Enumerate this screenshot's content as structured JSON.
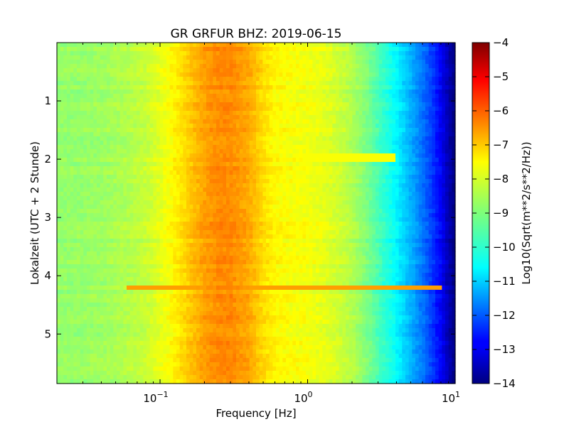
{
  "chart_data": {
    "type": "heatmap",
    "title": "GR GRFUR BHZ: 2019-06-15",
    "xlabel": "Frequency [Hz]",
    "ylabel": "Lokalzeit (UTC + 2 Stunde)",
    "x_scale": "log",
    "xlim": [
      0.02,
      10
    ],
    "x_ticks": [
      {
        "value": 0.1,
        "base": "10",
        "exp": "−1"
      },
      {
        "value": 1,
        "base": "10",
        "exp": "0"
      },
      {
        "value": 10,
        "base": "10",
        "exp": "1"
      }
    ],
    "ylim": [
      0,
      5.85
    ],
    "y_inverted": true,
    "y_ticks": [
      1,
      2,
      3,
      4,
      5
    ],
    "y_tick_labels": [
      "1",
      "2",
      "3",
      "4",
      "5"
    ],
    "colorbar": {
      "label": "Log10(Sqrt(m**2/s**2/Hz))",
      "range": [
        -14,
        -4
      ],
      "ticks": [
        -4,
        -5,
        -6,
        -7,
        -8,
        -9,
        -10,
        -11,
        -12,
        -13,
        -14
      ],
      "tick_labels": [
        "−4",
        "−5",
        "−6",
        "−7",
        "−8",
        "−9",
        "−10",
        "−11",
        "−12",
        "−13",
        "−14"
      ],
      "colormap": "jet"
    },
    "spectrum_profile": {
      "frequency_hz": [
        0.02,
        0.03,
        0.04,
        0.06,
        0.08,
        0.1,
        0.13,
        0.16,
        0.2,
        0.25,
        0.3,
        0.4,
        0.5,
        0.6,
        0.8,
        1.0,
        1.3,
        1.6,
        2.0,
        2.5,
        3.0,
        4.0,
        5.0,
        6.0,
        7.0,
        8.0,
        9.0,
        10.0
      ],
      "level": [
        -8.8,
        -8.75,
        -8.7,
        -8.5,
        -8.3,
        -8.0,
        -7.6,
        -7.2,
        -6.8,
        -6.6,
        -6.6,
        -6.9,
        -7.4,
        -7.7,
        -7.8,
        -7.85,
        -8.0,
        -8.2,
        -8.5,
        -9.0,
        -9.5,
        -10.3,
        -11.0,
        -11.6,
        -12.2,
        -12.8,
        -13.5,
        -14.0
      ]
    },
    "events": [
      {
        "time": 4.22,
        "freq_min": 0.06,
        "freq_max": 8.0,
        "level": -6.8
      },
      {
        "time": 1.98,
        "freq_min": 0.8,
        "freq_max": 4.0,
        "level": -7.8
      }
    ]
  }
}
